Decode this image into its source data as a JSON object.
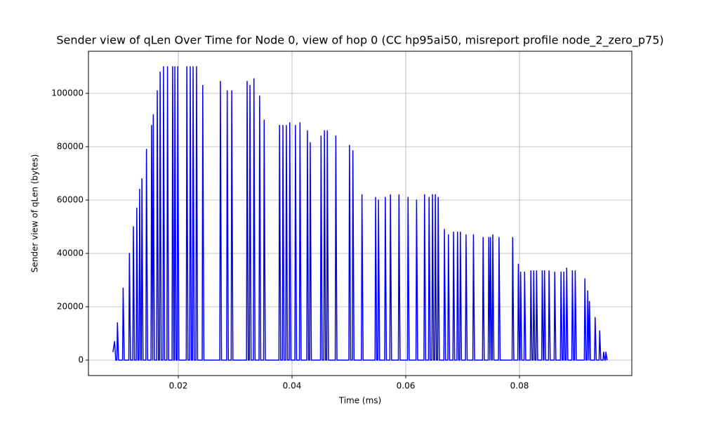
{
  "chart_data": {
    "type": "line",
    "title": "Sender view of qLen Over Time for Node 0, view of hop 0 (CC hp95ai50, misreport profile node_2_zero_p75)",
    "xlabel": "Time (ms)",
    "ylabel": "Sender view of qLen (bytes)",
    "xlim": [
      0.0042,
      0.09975
    ],
    "ylim": [
      -5790,
      115790
    ],
    "xticks": [
      0.02,
      0.04,
      0.06,
      0.08
    ],
    "yticks": [
      0,
      20000,
      40000,
      60000,
      80000,
      100000
    ],
    "grid": true,
    "series": [
      {
        "name": "qLen",
        "color": "#0000ff",
        "x": [
          0.0085,
          0.0088,
          0.009,
          0.0092,
          0.0093,
          0.0095,
          0.0102,
          0.0103,
          0.0105,
          0.0113,
          0.0114,
          0.0116,
          0.012,
          0.0121,
          0.0123,
          0.0126,
          0.0127,
          0.0129,
          0.0131,
          0.0132,
          0.0134,
          0.0135,
          0.0136,
          0.0138,
          0.0143,
          0.0144,
          0.0146,
          0.0152,
          0.0153,
          0.0155,
          0.0155,
          0.0156,
          0.0158,
          0.0162,
          0.0163,
          0.0165,
          0.0167,
          0.0168,
          0.017,
          0.0173,
          0.0174,
          0.0176,
          0.018,
          0.0181,
          0.0183,
          0.0189,
          0.019,
          0.0192,
          0.0193,
          0.0194,
          0.0196,
          0.0198,
          0.0199,
          0.0201,
          0.0214,
          0.0215,
          0.0217,
          0.022,
          0.0221,
          0.0223,
          0.0225,
          0.0226,
          0.0228,
          0.0231,
          0.0232,
          0.0234,
          0.0242,
          0.0243,
          0.0245,
          0.0273,
          0.0274,
          0.0276,
          0.0285,
          0.0286,
          0.0288,
          0.0293,
          0.0294,
          0.0296,
          0.032,
          0.0321,
          0.0323,
          0.0325,
          0.0326,
          0.0328,
          0.0332,
          0.0333,
          0.0335,
          0.0342,
          0.0343,
          0.0345,
          0.035,
          0.0351,
          0.0353,
          0.0377,
          0.0378,
          0.038,
          0.0383,
          0.0384,
          0.0386,
          0.0389,
          0.039,
          0.0392,
          0.0395,
          0.0396,
          0.0398,
          0.0405,
          0.0406,
          0.0408,
          0.0413,
          0.0414,
          0.0416,
          0.0426,
          0.0427,
          0.0429,
          0.0431,
          0.0432,
          0.0434,
          0.045,
          0.0451,
          0.0453,
          0.0456,
          0.0457,
          0.0459,
          0.0461,
          0.0462,
          0.0464,
          0.0476,
          0.0477,
          0.0479,
          0.05,
          0.0501,
          0.0503,
          0.0506,
          0.0507,
          0.0509,
          0.0522,
          0.0523,
          0.0525,
          0.0546,
          0.0547,
          0.0549,
          0.0551,
          0.0552,
          0.0554,
          0.0563,
          0.0564,
          0.0566,
          0.0572,
          0.0573,
          0.0575,
          0.0587,
          0.0588,
          0.059,
          0.0603,
          0.0604,
          0.0606,
          0.0618,
          0.0619,
          0.0621,
          0.0632,
          0.0633,
          0.0635,
          0.064,
          0.0641,
          0.0643,
          0.0646,
          0.0647,
          0.0649,
          0.0651,
          0.0652,
          0.0654,
          0.0656,
          0.0657,
          0.0659,
          0.0667,
          0.0668,
          0.067,
          0.0674,
          0.0675,
          0.0677,
          0.0683,
          0.0684,
          0.0686,
          0.069,
          0.0691,
          0.0693,
          0.0695,
          0.0696,
          0.0698,
          0.0705,
          0.0706,
          0.0708,
          0.0718,
          0.0719,
          0.0721,
          0.0735,
          0.0736,
          0.0738,
          0.0745,
          0.0746,
          0.0748,
          0.0748,
          0.0749,
          0.0751,
          0.0752,
          0.0753,
          0.0755,
          0.0763,
          0.0764,
          0.0766,
          0.0787,
          0.0788,
          0.079,
          0.0797,
          0.0798,
          0.08,
          0.0801,
          0.0802,
          0.0804,
          0.0808,
          0.0809,
          0.0811,
          0.0819,
          0.082,
          0.0822,
          0.0824,
          0.0825,
          0.0827,
          0.0829,
          0.083,
          0.0832,
          0.0839,
          0.084,
          0.0842,
          0.0843,
          0.0844,
          0.0846,
          0.0851,
          0.0852,
          0.0854,
          0.0861,
          0.0862,
          0.0864,
          0.0872,
          0.0873,
          0.0875,
          0.0877,
          0.0878,
          0.088,
          0.0882,
          0.0883,
          0.0885,
          0.0892,
          0.0893,
          0.0895,
          0.0897,
          0.0898,
          0.09,
          0.0914,
          0.0915,
          0.0917,
          0.0919,
          0.092,
          0.0922,
          0.0922,
          0.0923,
          0.0925,
          0.0932,
          0.0933,
          0.0935,
          0.094,
          0.0941,
          0.0943,
          0.0947,
          0.0948,
          0.095,
          0.0951,
          0.0952,
          0.0954
        ],
        "values": [
          3000,
          7000,
          0,
          0,
          14000,
          0,
          0,
          27000,
          0,
          0,
          40000,
          0,
          0,
          50000,
          0,
          0,
          57000,
          0,
          0,
          64000,
          0,
          0,
          68000,
          0,
          0,
          79000,
          0,
          0,
          88000,
          0,
          0,
          92000,
          0,
          0,
          101000,
          0,
          0,
          108000,
          0,
          0,
          110000,
          0,
          0,
          110000,
          0,
          0,
          110000,
          0,
          0,
          110000,
          0,
          0,
          110000,
          0,
          0,
          110000,
          0,
          0,
          110000,
          0,
          0,
          110000,
          0,
          0,
          110000,
          0,
          0,
          103000,
          0,
          0,
          104500,
          0,
          0,
          101000,
          0,
          0,
          101000,
          0,
          0,
          104500,
          0,
          0,
          103000,
          0,
          0,
          105500,
          0,
          0,
          99000,
          0,
          0,
          90000,
          0,
          0,
          88000,
          0,
          0,
          88000,
          0,
          0,
          88000,
          0,
          0,
          89000,
          0,
          0,
          88000,
          0,
          0,
          89000,
          0,
          0,
          86000,
          0,
          0,
          81500,
          0,
          0,
          84000,
          0,
          0,
          86000,
          0,
          0,
          86000,
          0,
          0,
          84000,
          0,
          0,
          80500,
          0,
          0,
          78500,
          0,
          0,
          62000,
          0,
          0,
          61000,
          0,
          0,
          60000,
          0,
          0,
          61000,
          0,
          0,
          62000,
          0,
          0,
          62000,
          0,
          0,
          61000,
          0,
          0,
          60000,
          0,
          0,
          62000,
          0,
          0,
          61000,
          0,
          0,
          62000,
          0,
          0,
          62000,
          0,
          0,
          61000,
          0,
          0,
          49000,
          0,
          0,
          47000,
          0,
          0,
          48000,
          0,
          0,
          48000,
          0,
          0,
          48000,
          0,
          0,
          47000,
          0,
          0,
          47000,
          0,
          0,
          46000,
          0,
          0,
          46000,
          0,
          0,
          46000,
          0,
          0,
          47000,
          0,
          0,
          46000,
          0,
          0,
          46000,
          0,
          0,
          36000,
          0,
          0,
          33000,
          0,
          0,
          33000,
          0,
          0,
          33500,
          0,
          0,
          33500,
          0,
          0,
          33500,
          0,
          0,
          33500,
          0,
          0,
          33500,
          0,
          0,
          33500,
          0,
          0,
          33000,
          0,
          0,
          33000,
          0,
          0,
          33000,
          0,
          0,
          34500,
          0,
          0,
          33500,
          0,
          0,
          33500,
          0,
          0,
          30500,
          0,
          0,
          26000,
          0,
          0,
          22000,
          0,
          0,
          16000,
          0,
          0,
          11000,
          0,
          0,
          3000,
          0,
          0,
          3000,
          0
        ]
      }
    ]
  }
}
